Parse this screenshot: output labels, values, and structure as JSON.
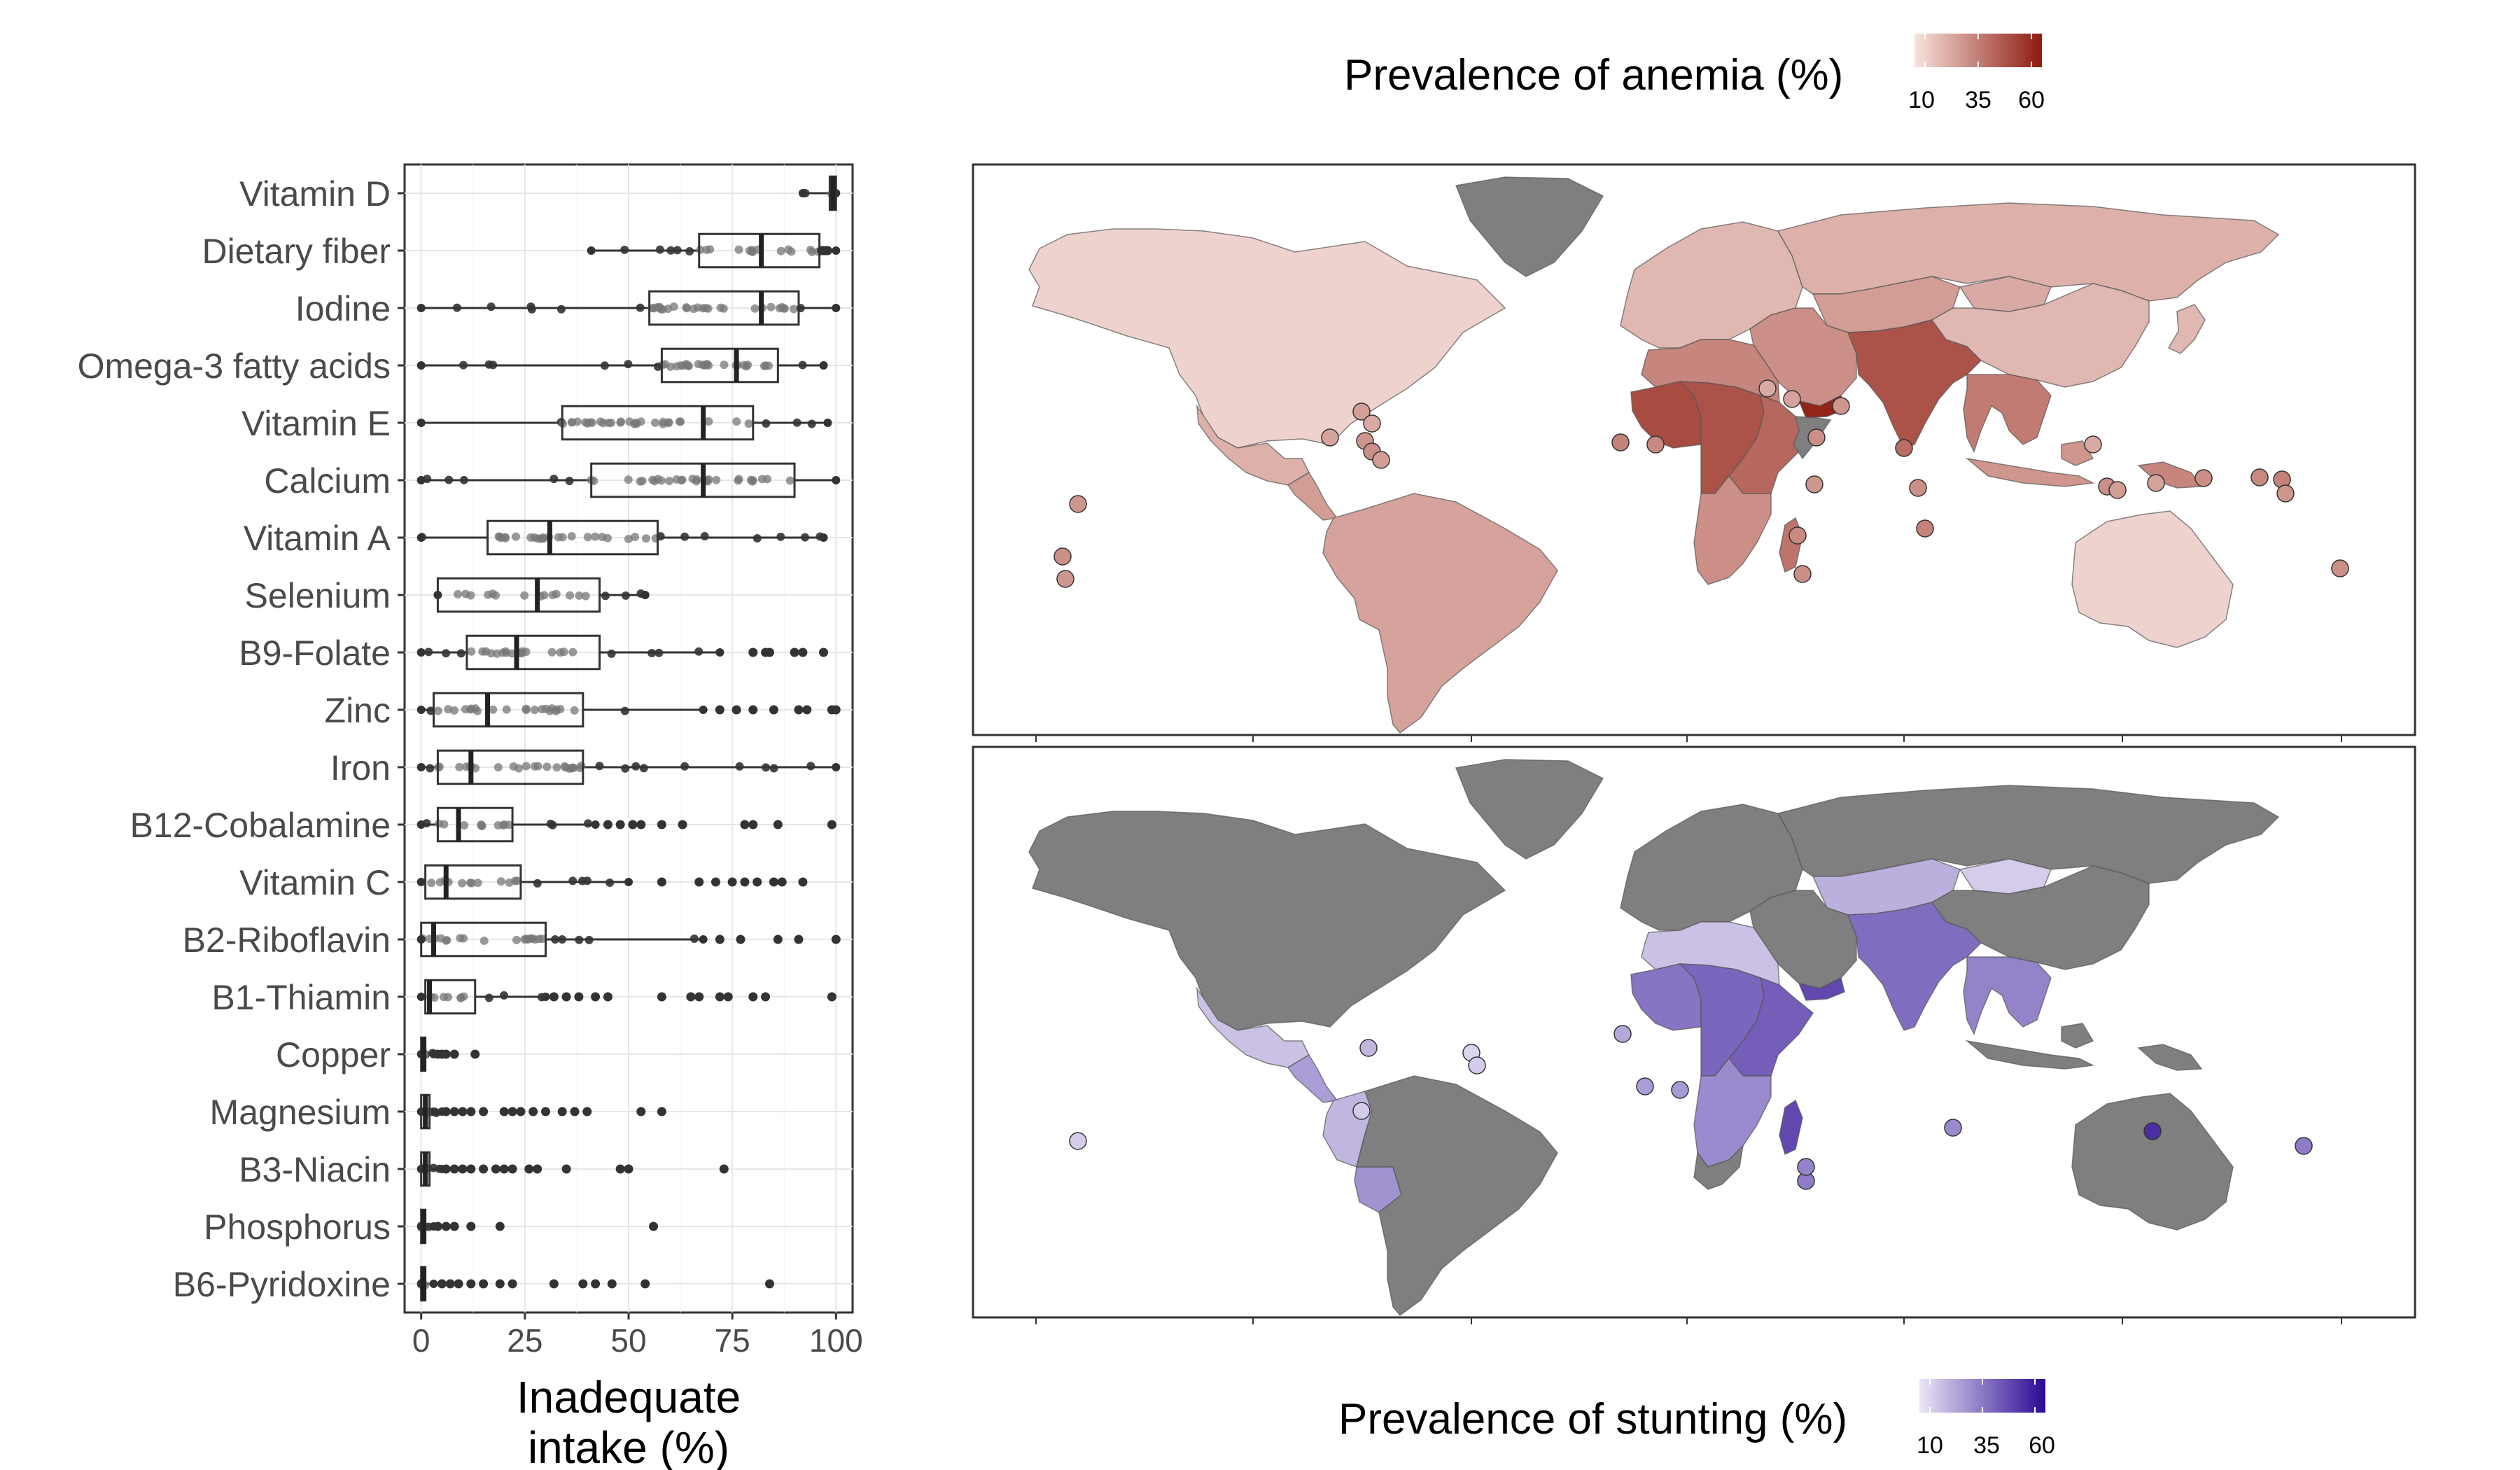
{
  "chart_data": [
    {
      "type": "box",
      "xlabel_lines": [
        "Inadequate",
        "intake (%)"
      ],
      "xlim": [
        -4,
        104
      ],
      "xticks": [
        0,
        25,
        50,
        75,
        100
      ],
      "grid": true,
      "categories": [
        "Vitamin D",
        "Dietary fiber",
        "Iodine",
        "Omega-3 fatty acids",
        "Vitamin E",
        "Calcium",
        "Vitamin A",
        "Selenium",
        "B9-Folate",
        "Zinc",
        "Iron",
        "B12-Cobalamine",
        "Vitamin C",
        "B2-Riboflavin",
        "B1-Thiamin",
        "Copper",
        "Magnesium",
        "B3-Niacin",
        "Phosphorus",
        "B6-Pyridoxine"
      ],
      "boxes": [
        {
          "name": "Vitamin D",
          "whisker_low": 92,
          "q1": 98.5,
          "median": 99.3,
          "q3": 100,
          "whisker_high": 100,
          "outliers": []
        },
        {
          "name": "Dietary fiber",
          "whisker_low": 41,
          "q1": 67,
          "median": 82,
          "q3": 96,
          "whisker_high": 100,
          "outliers": [
            96.5,
            97,
            97.5,
            98
          ]
        },
        {
          "name": "Iodine",
          "whisker_low": 0,
          "q1": 55,
          "median": 82,
          "q3": 91,
          "whisker_high": 100,
          "outliers": []
        },
        {
          "name": "Omega-3 fatty acids",
          "whisker_low": 0,
          "q1": 58,
          "median": 76,
          "q3": 86,
          "whisker_high": 97,
          "outliers": []
        },
        {
          "name": "Vitamin E",
          "whisker_low": 0,
          "q1": 34,
          "median": 68,
          "q3": 80,
          "whisker_high": 98,
          "outliers": []
        },
        {
          "name": "Calcium",
          "whisker_low": 0,
          "q1": 41,
          "median": 68,
          "q3": 90,
          "whisker_high": 100,
          "outliers": []
        },
        {
          "name": "Vitamin A",
          "whisker_low": 0,
          "q1": 16,
          "median": 31,
          "q3": 57,
          "whisker_high": 97,
          "outliers": []
        },
        {
          "name": "Selenium",
          "whisker_low": 4,
          "q1": 4,
          "median": 28,
          "q3": 43,
          "whisker_high": 54,
          "outliers": []
        },
        {
          "name": "B9-Folate",
          "whisker_low": 0,
          "q1": 11,
          "median": 23,
          "q3": 43,
          "whisker_high": 72,
          "outliers": [
            80,
            83,
            84,
            90,
            92,
            97
          ]
        },
        {
          "name": "Zinc",
          "whisker_low": 0,
          "q1": 3,
          "median": 16,
          "q3": 39,
          "whisker_high": 68,
          "outliers": [
            72,
            76,
            80,
            85,
            91,
            93,
            99,
            100
          ]
        },
        {
          "name": "Iron",
          "whisker_low": 0,
          "q1": 4,
          "median": 12,
          "q3": 39,
          "whisker_high": 100,
          "outliers": []
        },
        {
          "name": "B12-Cobalamine",
          "whisker_low": 0,
          "q1": 4,
          "median": 9,
          "q3": 22,
          "whisker_high": 42,
          "outliers": [
            45,
            48,
            51,
            53,
            58,
            63,
            78,
            80,
            86,
            99
          ]
        },
        {
          "name": "Vitamin C",
          "whisker_low": 0,
          "q1": 1,
          "median": 6,
          "q3": 24,
          "whisker_high": 50,
          "outliers": [
            58,
            67,
            71,
            75,
            78,
            81,
            85,
            87,
            92
          ]
        },
        {
          "name": "B2-Riboflavin",
          "whisker_low": 0,
          "q1": 0,
          "median": 3,
          "q3": 30,
          "whisker_high": 68,
          "outliers": [
            72,
            77,
            86,
            91,
            100
          ]
        },
        {
          "name": "B1-Thiamin",
          "whisker_low": 0,
          "q1": 1,
          "median": 2,
          "q3": 13,
          "whisker_high": 30,
          "outliers": [
            32,
            35,
            38,
            42,
            45,
            58,
            65,
            67,
            72,
            74,
            80,
            83,
            99
          ]
        },
        {
          "name": "Copper",
          "whisker_low": 0,
          "q1": 0,
          "median": 0.5,
          "q3": 1,
          "whisker_high": 3,
          "outliers": [
            4,
            5,
            6,
            8,
            13
          ]
        },
        {
          "name": "Magnesium",
          "whisker_low": 0,
          "q1": 0,
          "median": 1,
          "q3": 2,
          "whisker_high": 5,
          "outliers": [
            6,
            8,
            10,
            12,
            15,
            20,
            22,
            24,
            27,
            30,
            34,
            37,
            40,
            53,
            58
          ]
        },
        {
          "name": "B3-Niacin",
          "whisker_low": 0,
          "q1": 0,
          "median": 1,
          "q3": 2,
          "whisker_high": 5,
          "outliers": [
            6,
            8,
            10,
            12,
            15,
            18,
            20,
            22,
            26,
            28,
            35,
            48,
            50,
            73
          ]
        },
        {
          "name": "Phosphorus",
          "whisker_low": 0,
          "q1": 0,
          "median": 0.5,
          "q3": 1,
          "whisker_high": 3,
          "outliers": [
            4,
            6,
            8,
            12,
            19,
            56
          ]
        },
        {
          "name": "B6-Pyridoxine",
          "whisker_low": 0,
          "q1": 0,
          "median": 0.5,
          "q3": 1,
          "whisker_high": 3,
          "outliers": [
            5,
            7,
            9,
            12,
            15,
            19,
            22,
            32,
            39,
            42,
            46,
            54,
            84
          ]
        }
      ]
    },
    {
      "type": "choropleth",
      "legend_title": "Prevalence of anemia (%)",
      "legend_ticks": [
        "10",
        "35",
        "60"
      ],
      "legend_range": [
        5,
        65
      ],
      "colors": {
        "low": "#f7e3de",
        "high": "#8e1a0e",
        "no_data": "#7f7f7f"
      },
      "regions": [
        {
          "name": "North America",
          "value": 10
        },
        {
          "name": "Greenland",
          "value": null
        },
        {
          "name": "Mexico",
          "value": 20
        },
        {
          "name": "Central America",
          "value": 26
        },
        {
          "name": "South America",
          "value": 24
        },
        {
          "name": "Europe",
          "value": 18
        },
        {
          "name": "Russia",
          "value": 20
        },
        {
          "name": "Central Asia",
          "value": 26
        },
        {
          "name": "Middle East",
          "value": 30
        },
        {
          "name": "Yemen",
          "value": 62
        },
        {
          "name": "North Africa",
          "value": 33
        },
        {
          "name": "West Africa",
          "value": 50
        },
        {
          "name": "Central Africa",
          "value": 48
        },
        {
          "name": "East Africa",
          "value": 42
        },
        {
          "name": "Somalia",
          "value": null
        },
        {
          "name": "Southern Africa",
          "value": 30
        },
        {
          "name": "Madagascar",
          "value": 38
        },
        {
          "name": "South Asia",
          "value": 48
        },
        {
          "name": "China",
          "value": 18
        },
        {
          "name": "Mongolia",
          "value": 22
        },
        {
          "name": "Southeast Asia",
          "value": 36
        },
        {
          "name": "Indonesia",
          "value": 28
        },
        {
          "name": "Papua New Guinea",
          "value": 33
        },
        {
          "name": "Japan",
          "value": 18
        },
        {
          "name": "Australia",
          "value": 10
        }
      ]
    },
    {
      "type": "choropleth",
      "legend_title": "Prevalence of stunting (%)",
      "legend_ticks": [
        "10",
        "35",
        "60"
      ],
      "legend_range": [
        5,
        65
      ],
      "colors": {
        "low": "#ebe6f5",
        "high": "#2a0a94",
        "no_data": "#7f7f7f"
      },
      "regions": [
        {
          "name": "North America",
          "value": null
        },
        {
          "name": "Greenland",
          "value": null
        },
        {
          "name": "Mexico",
          "value": 15
        },
        {
          "name": "Central America",
          "value": 25
        },
        {
          "name": "Andean South America",
          "value": 18
        },
        {
          "name": "Bolivia",
          "value": 28
        },
        {
          "name": "South America rest",
          "value": null
        },
        {
          "name": "Europe",
          "value": null
        },
        {
          "name": "Russia",
          "value": null
        },
        {
          "name": "Central Asia",
          "value": 20
        },
        {
          "name": "Mongolia",
          "value": 12
        },
        {
          "name": "Middle East",
          "value": null
        },
        {
          "name": "Yemen",
          "value": 48
        },
        {
          "name": "North Africa",
          "value": 15
        },
        {
          "name": "West Africa",
          "value": 36
        },
        {
          "name": "Central Africa",
          "value": 40
        },
        {
          "name": "East Africa",
          "value": 42
        },
        {
          "name": "Southern Africa",
          "value": 30
        },
        {
          "name": "South Africa",
          "value": null
        },
        {
          "name": "Madagascar",
          "value": 48
        },
        {
          "name": "South Asia",
          "value": 38
        },
        {
          "name": "China",
          "value": null
        },
        {
          "name": "Southeast Asia",
          "value": 32
        },
        {
          "name": "Indonesia",
          "value": null
        },
        {
          "name": "Papua New Guinea",
          "value": null
        },
        {
          "name": "Australia",
          "value": null
        }
      ]
    }
  ]
}
